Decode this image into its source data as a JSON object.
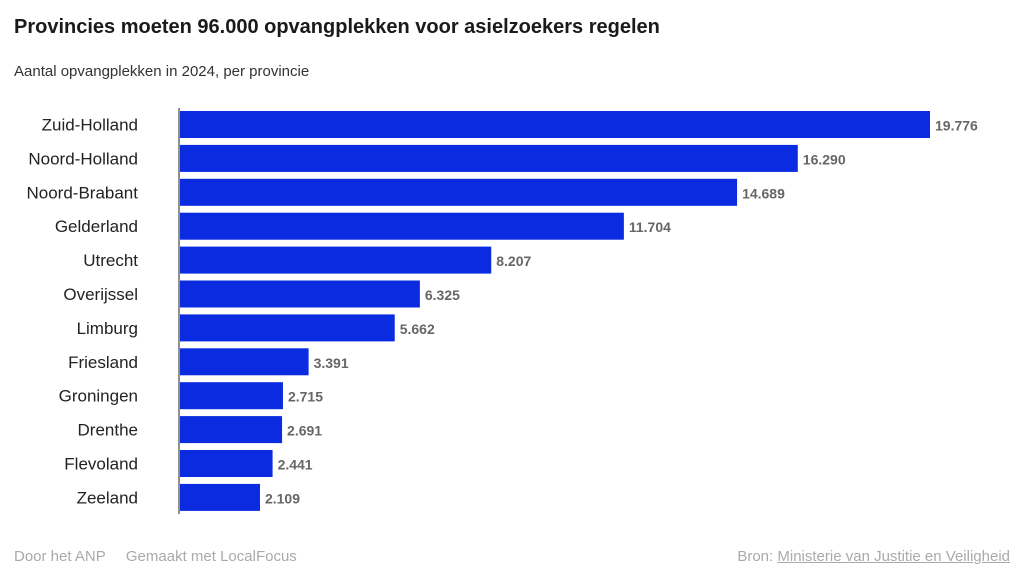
{
  "title": "Provincies moeten 96.000 opvangplekken voor asielzoekers regelen",
  "subtitle": "Aantal opvangplekken in 2024, per provincie",
  "chart_data": {
    "type": "bar",
    "orientation": "horizontal",
    "categories": [
      "Zuid-Holland",
      "Noord-Holland",
      "Noord-Brabant",
      "Gelderland",
      "Utrecht",
      "Overijssel",
      "Limburg",
      "Friesland",
      "Groningen",
      "Drenthe",
      "Flevoland",
      "Zeeland"
    ],
    "values": [
      19776,
      16290,
      14689,
      11704,
      8207,
      6325,
      5662,
      3391,
      2715,
      2691,
      2441,
      2109
    ],
    "value_labels": [
      "19.776",
      "16.290",
      "14.689",
      "11.704",
      "8.207",
      "6.325",
      "5.662",
      "3.391",
      "2.715",
      "2.691",
      "2.441",
      "2.109"
    ],
    "bar_color": "#0a2be0",
    "xlim": [
      0,
      19776
    ],
    "grid": false
  },
  "footer": {
    "author": "Door het ANP",
    "made_with": "Gemaakt met LocalFocus",
    "source_label": "Bron:",
    "source_name": "Ministerie van Justitie en Veiligheid"
  }
}
